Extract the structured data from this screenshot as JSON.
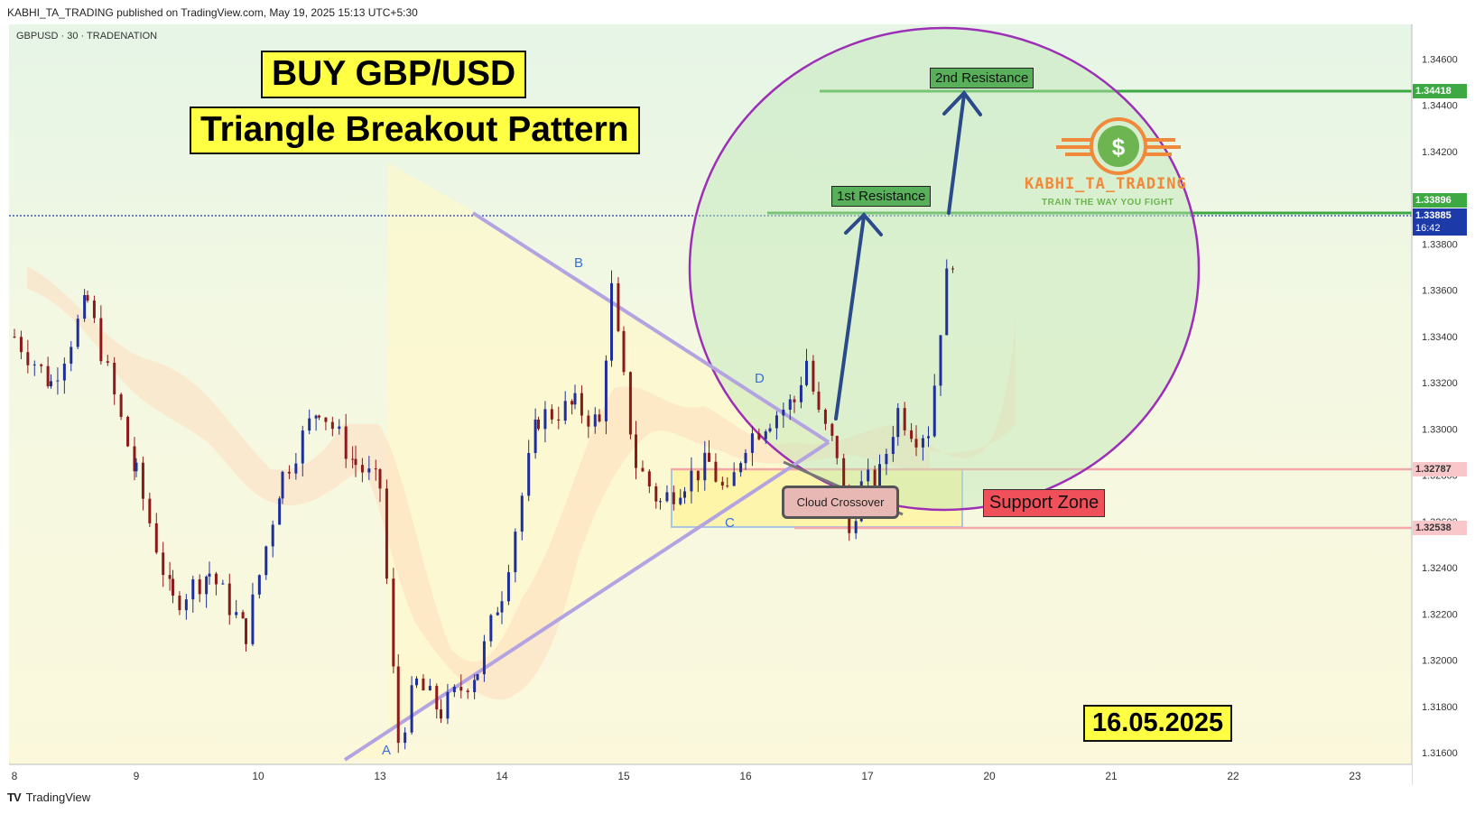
{
  "header": {
    "text": "KABHI_TA_TRADING published on TradingView.com, May 19, 2025 15:13 UTC+5:30"
  },
  "symbol": {
    "text": "GBPUSD · 30 · TRADENATION"
  },
  "footer": {
    "brand": "TradingView"
  },
  "annotations": {
    "title1": "BUY GBP/USD",
    "title2": "Triangle Breakout Pattern",
    "date": "16.05.2025",
    "support_zone": "Support Zone",
    "first_resistance": "1st Resistance",
    "second_resistance": "2nd Resistance",
    "cloud_crossover": "Cloud Crossover",
    "point_a": "A",
    "point_b": "B",
    "point_c": "C",
    "point_d": "D"
  },
  "logo": {
    "name": "KABHI_TA_TRADING",
    "tagline": "TRAIN THE WAY YOU FIGHT",
    "icon": "dollar-coin-icon"
  },
  "price_tags": {
    "second_resistance": "1.34418",
    "first_resistance": "1.33896",
    "current_price": "1.33885",
    "countdown": "16:42",
    "support_top": "1.32787",
    "support_bottom": "1.32538"
  },
  "colors": {
    "bull_candle": "#1f2f9a",
    "bear_candle": "#8b1a1a",
    "resistance": "#3ea843",
    "support": "#f5a6aa",
    "circle": "#9c2fb5",
    "arrow": "#2b4a8a",
    "triangle": "#b3a3e0",
    "current_price": "#1c3aa8"
  },
  "chart_data": {
    "type": "line",
    "title": "",
    "xlabel": "",
    "ylabel": "",
    "x_ticks": [
      "8",
      "9",
      "10",
      "13",
      "14",
      "15",
      "16",
      "17",
      "20",
      "21",
      "22",
      "23"
    ],
    "y_ticks": [
      "1.34600",
      "1.34400",
      "1.34200",
      "1.34000",
      "1.33800",
      "1.33600",
      "1.33400",
      "1.33200",
      "1.33000",
      "1.32800",
      "1.32600",
      "1.32400",
      "1.32200",
      "1.32000",
      "1.31800",
      "1.31600"
    ],
    "ylim": [
      1.3155,
      1.3475
    ],
    "grid": false,
    "series": [
      {
        "values": [
          [
            0,
            1.334
          ],
          [
            0.3,
            1.332
          ],
          [
            0.6,
            1.3355
          ],
          [
            1.0,
            1.328
          ],
          [
            1.3,
            1.3225
          ],
          [
            1.6,
            1.3238
          ],
          [
            1.9,
            1.3212
          ],
          [
            2.2,
            1.328
          ],
          [
            2.5,
            1.331
          ],
          [
            2.8,
            1.3285
          ],
          [
            3.0,
            1.3275
          ],
          [
            3.15,
            1.3165
          ],
          [
            3.3,
            1.319
          ],
          [
            3.5,
            1.3178
          ],
          [
            3.8,
            1.3196
          ],
          [
            4.0,
            1.323
          ],
          [
            4.3,
            1.3305
          ],
          [
            4.6,
            1.331
          ],
          [
            4.8,
            1.3302
          ],
          [
            4.9,
            1.336
          ],
          [
            5.0,
            1.332
          ],
          [
            5.1,
            1.3285
          ],
          [
            5.3,
            1.3268
          ],
          [
            5.5,
            1.3278
          ],
          [
            5.7,
            1.3285
          ],
          [
            5.85,
            1.327
          ],
          [
            6.0,
            1.3295
          ],
          [
            6.2,
            1.3305
          ],
          [
            6.4,
            1.3312
          ],
          [
            6.5,
            1.333
          ],
          [
            6.6,
            1.3305
          ],
          [
            6.75,
            1.329
          ],
          [
            6.85,
            1.3255
          ],
          [
            6.95,
            1.3275
          ],
          [
            7.1,
            1.328
          ],
          [
            7.25,
            1.3308
          ],
          [
            7.4,
            1.3298
          ],
          [
            7.5,
            1.33
          ],
          [
            7.55,
            1.332
          ],
          [
            7.6,
            1.3345
          ],
          [
            7.65,
            1.3365
          ],
          [
            7.7,
            1.3375
          ],
          [
            7.75,
            1.33885
          ]
        ]
      }
    ],
    "levels": [
      {
        "name": "2nd Resistance",
        "value": 1.34418
      },
      {
        "name": "1st Resistance",
        "value": 1.33896
      },
      {
        "name": "current",
        "value": 1.33885
      },
      {
        "name": "Support Zone top",
        "value": 1.32787
      },
      {
        "name": "Support Zone bottom",
        "value": 1.32538
      }
    ],
    "pattern_points": {
      "A": [
        3.2,
        1.316
      ],
      "B": [
        4.85,
        1.3362
      ],
      "C": [
        5.85,
        1.3252
      ],
      "D": [
        6.05,
        1.3312
      ]
    }
  }
}
